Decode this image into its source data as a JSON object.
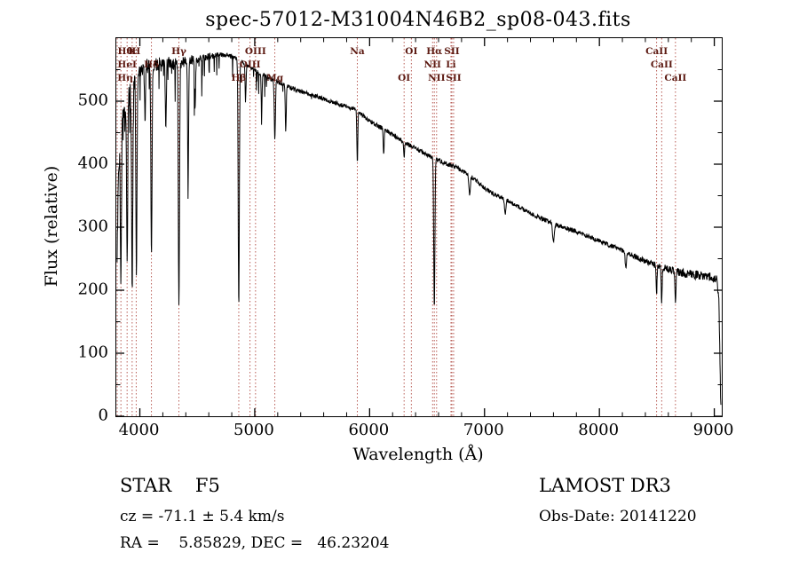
{
  "title": "spec-57012-M31004N46B2_sp08-043.fits",
  "footer": {
    "class_label": "STAR    F5",
    "cz_label": "cz = -71.1 ± 5.4 km/s",
    "radec_label": "RA =    5.85829, DEC =   46.23204",
    "survey": "LAMOST DR3",
    "obs_date": "Obs-Date: 20141220"
  },
  "chart_data": {
    "type": "line",
    "title": "spec-57012-M31004N46B2_sp08-043.fits",
    "xlabel": "Wavelength (Å)",
    "ylabel": "Flux (relative)",
    "xlim": [
      3795,
      9065
    ],
    "ylim": [
      0,
      600
    ],
    "x_ticks": [
      4000,
      5000,
      6000,
      7000,
      8000,
      9000
    ],
    "y_ticks": [
      0,
      100,
      200,
      300,
      400,
      500
    ],
    "grid": false,
    "legend": "none",
    "line_color": "#000000",
    "marker_line_color": "#b04a42",
    "marker_label_color": "#5c1a12",
    "data_range": [
      3802,
      9058
    ],
    "continuum": [
      [
        3800,
        240
      ],
      [
        3812,
        360
      ],
      [
        3825,
        430
      ],
      [
        3845,
        470
      ],
      [
        3875,
        492
      ],
      [
        3910,
        515
      ],
      [
        3950,
        532
      ],
      [
        4000,
        548
      ],
      [
        4060,
        555
      ],
      [
        4120,
        558
      ],
      [
        4200,
        561
      ],
      [
        4300,
        560
      ],
      [
        4400,
        563
      ],
      [
        4500,
        567
      ],
      [
        4600,
        571
      ],
      [
        4700,
        574
      ],
      [
        4780,
        572
      ],
      [
        4861,
        566
      ],
      [
        4940,
        556
      ],
      [
        5000,
        549
      ],
      [
        5080,
        541
      ],
      [
        5160,
        534
      ],
      [
        5240,
        527
      ],
      [
        5320,
        521
      ],
      [
        5400,
        516
      ],
      [
        5480,
        511
      ],
      [
        5560,
        506
      ],
      [
        5640,
        501
      ],
      [
        5720,
        496
      ],
      [
        5800,
        491
      ],
      [
        5880,
        486
      ],
      [
        5960,
        474
      ],
      [
        6040,
        464
      ],
      [
        6120,
        456
      ],
      [
        6200,
        447
      ],
      [
        6280,
        438
      ],
      [
        6360,
        429
      ],
      [
        6440,
        421
      ],
      [
        6520,
        413
      ],
      [
        6600,
        406
      ],
      [
        6680,
        400
      ],
      [
        6760,
        394
      ],
      [
        6840,
        386
      ],
      [
        6920,
        375
      ],
      [
        7000,
        362
      ],
      [
        7080,
        353
      ],
      [
        7160,
        346
      ],
      [
        7240,
        338
      ],
      [
        7320,
        330
      ],
      [
        7400,
        322
      ],
      [
        7480,
        315
      ],
      [
        7560,
        309
      ],
      [
        7640,
        303
      ],
      [
        7720,
        298
      ],
      [
        7800,
        293
      ],
      [
        7880,
        287
      ],
      [
        7960,
        281
      ],
      [
        8040,
        275
      ],
      [
        8120,
        269
      ],
      [
        8200,
        263
      ],
      [
        8280,
        256
      ],
      [
        8360,
        249
      ],
      [
        8440,
        243
      ],
      [
        8520,
        238
      ],
      [
        8600,
        233
      ],
      [
        8680,
        229
      ],
      [
        8760,
        226
      ],
      [
        8840,
        224
      ],
      [
        8920,
        222
      ],
      [
        8980,
        220
      ],
      [
        9020,
        216
      ],
      [
        9040,
        190
      ],
      [
        9050,
        80
      ],
      [
        9058,
        5
      ]
    ],
    "absorption_lines": [
      [
        3835,
        230,
        5
      ],
      [
        3889,
        250,
        5
      ],
      [
        3933,
        320,
        5
      ],
      [
        3970,
        310,
        5
      ],
      [
        4045,
        90,
        4
      ],
      [
        4101,
        300,
        5
      ],
      [
        4226,
        110,
        4
      ],
      [
        4340,
        390,
        5
      ],
      [
        4420,
        210,
        4
      ],
      [
        4481,
        80,
        4
      ],
      [
        4861,
        395,
        5
      ],
      [
        4920,
        60,
        4
      ],
      [
        5060,
        60,
        4
      ],
      [
        5175,
        95,
        5
      ],
      [
        5270,
        75,
        4
      ],
      [
        5893,
        85,
        4
      ],
      [
        6122,
        40,
        4
      ],
      [
        6300,
        25,
        4
      ],
      [
        6563,
        240,
        5
      ],
      [
        6870,
        30,
        6
      ],
      [
        7180,
        25,
        5
      ],
      [
        7600,
        30,
        7
      ],
      [
        8230,
        25,
        6
      ],
      [
        8498,
        45,
        4
      ],
      [
        8542,
        58,
        4
      ],
      [
        8662,
        48,
        4
      ]
    ],
    "noise": {
      "base": 3.5,
      "blue_extra": 13,
      "red_extra": 5
    },
    "spectral_markers": [
      {
        "wavelength": 3798,
        "label": "Hθ",
        "row": 1
      },
      {
        "wavelength": 3835,
        "label": "Hη",
        "row": 3
      },
      {
        "wavelength": 3889,
        "label": "HeI",
        "row": 2
      },
      {
        "wavelength": 3933,
        "label": "K",
        "row": 1
      },
      {
        "wavelength": 3968,
        "label": "H",
        "row": 1
      },
      {
        "wavelength": 4101,
        "label": "Hδ",
        "row": 2
      },
      {
        "wavelength": 4340,
        "label": "Hγ",
        "row": 1
      },
      {
        "wavelength": 4861,
        "label": "Hβ",
        "row": 3
      },
      {
        "wavelength": 4959,
        "label": "OIII",
        "row": 2
      },
      {
        "wavelength": 5007,
        "label": "OIII",
        "row": 1
      },
      {
        "wavelength": 5175,
        "label": "Mg",
        "row": 3
      },
      {
        "wavelength": 5893,
        "label": "Na",
        "row": 1
      },
      {
        "wavelength": 6300,
        "label": "OI",
        "row": 3
      },
      {
        "wavelength": 6363,
        "label": "OI",
        "row": 1
      },
      {
        "wavelength": 6548,
        "label": "NII",
        "row": 2
      },
      {
        "wavelength": 6563,
        "label": "Hα",
        "row": 1
      },
      {
        "wavelength": 6583,
        "label": "NII",
        "row": 3
      },
      {
        "wavelength": 6708,
        "label": "Li",
        "row": 2
      },
      {
        "wavelength": 6716,
        "label": "SII",
        "row": 1
      },
      {
        "wavelength": 6731,
        "label": "SII",
        "row": 3
      },
      {
        "wavelength": 8498,
        "label": "CaII",
        "row": 1
      },
      {
        "wavelength": 8542,
        "label": "CaII",
        "row": 2
      },
      {
        "wavelength": 8662,
        "label": "CaII",
        "row": 3
      }
    ]
  }
}
